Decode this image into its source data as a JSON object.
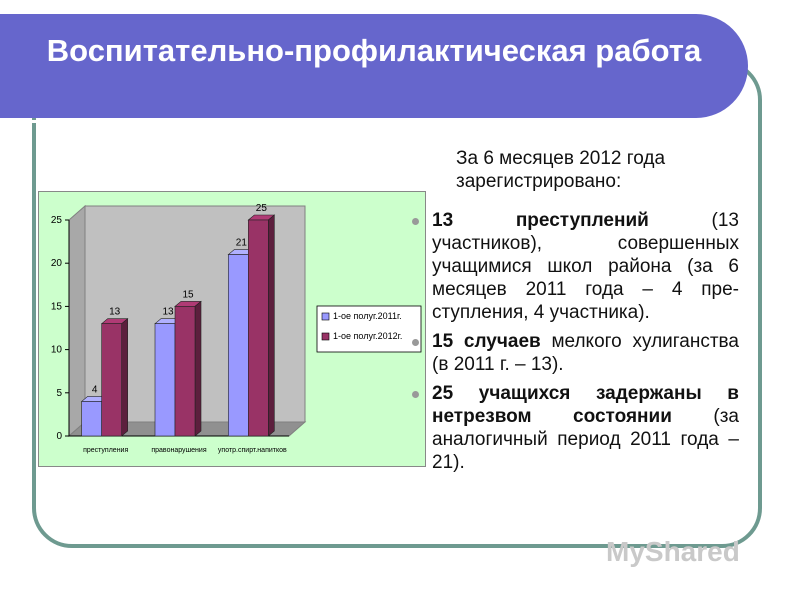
{
  "title": "Воспитательно-профилактическая работа",
  "intro": "За 6 месяцев 2012 года зарегистрировано:",
  "bullets": [
    {
      "bold": "13 преступлений",
      "text": " (13 участников), совершенных учащимися школ района (за 6 месяцев 2011 года – 4 пре-ступления, 4 участника)."
    },
    {
      "bold": "15 случаев",
      "text": " мелкого хулиганства (в 2011 г. – 13)."
    },
    {
      "bold": "25 учащихся задержаны в нетрезвом состоянии",
      "text": " (за аналогичный период 2011 года – 21)."
    }
  ],
  "watermark": "MyShared",
  "chart_data": {
    "type": "bar",
    "categories": [
      "преступления",
      "правонарушения",
      "употр.спирт.напитков"
    ],
    "series": [
      {
        "name": "1-ое полуг.2011г.",
        "values": [
          4,
          13,
          21
        ],
        "color": "#9999ff"
      },
      {
        "name": "1-ое полуг.2012г.",
        "values": [
          13,
          15,
          25
        ],
        "color": "#993366"
      }
    ],
    "yticks": [
      0,
      5,
      10,
      15,
      20,
      25
    ],
    "ylim": [
      0,
      25
    ],
    "legend": "right",
    "grid": false
  }
}
